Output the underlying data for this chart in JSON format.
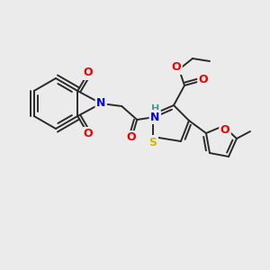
{
  "bg_color": "#ebebeb",
  "bond_color": "#2a2a2a",
  "bond_width": 1.4,
  "atom_colors": {
    "N": "#0000ee",
    "O": "#ee0000",
    "S": "#ccbb00",
    "NH": "#4a9999",
    "C": "#2a2a2a"
  }
}
